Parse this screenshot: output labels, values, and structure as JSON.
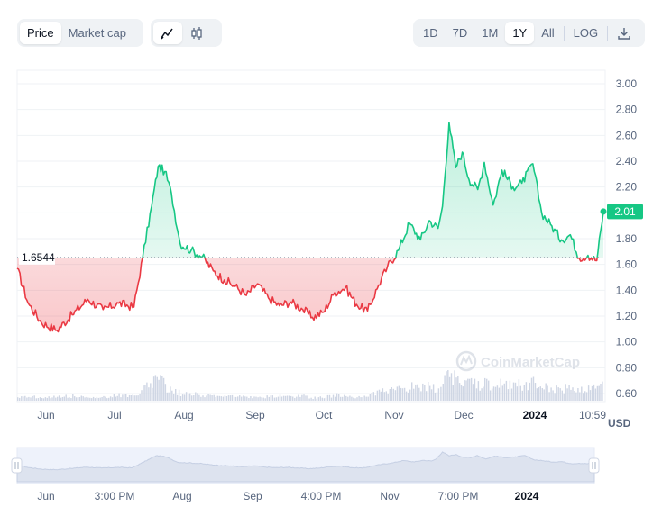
{
  "toolbar": {
    "metric_tabs": [
      "Price",
      "Market cap"
    ],
    "active_metric": "Price",
    "chart_type_icons": [
      "line-chart-icon",
      "candlestick-icon"
    ],
    "ranges": [
      "1D",
      "7D",
      "1M",
      "1Y",
      "All"
    ],
    "active_range": "1Y",
    "log_label": "LOG",
    "download_icon": "download-icon"
  },
  "colors": {
    "up": "#16c784",
    "down": "#ea3943",
    "accent": "#3861fb"
  },
  "watermark": "CoinMarketCap",
  "current_price_label": "2.01",
  "reference_price_label": "1.6544",
  "currency_label": "USD",
  "navigator": {
    "labels": [
      "Jun",
      "3:00 PM",
      "Aug",
      "Sep",
      "4:00 PM",
      "Nov",
      "7:00 PM",
      "2024"
    ]
  },
  "chart_data": {
    "type": "area",
    "baseline": 1.6544,
    "current": 2.01,
    "ylim": [
      0.5,
      3.1
    ],
    "y_ticks": [
      "3.00",
      "2.80",
      "2.60",
      "2.40",
      "2.20",
      "2.00",
      "1.80",
      "1.60",
      "1.40",
      "1.20",
      "1.00",
      "0.80",
      "0.60"
    ],
    "x_ticks": [
      "Jun",
      "Jul",
      "Aug",
      "Sep",
      "Oct",
      "Nov",
      "Dec",
      "2024",
      "10:59"
    ],
    "x_ticks_bold": [
      "2024"
    ],
    "ylabel": "USD",
    "series": [
      {
        "x": [
          "2023-05-21",
          "2023-05-26",
          "2023-06-01",
          "2023-06-08",
          "2023-06-15",
          "2023-06-22",
          "2023-06-29",
          "2023-07-06",
          "2023-07-13",
          "2023-07-17",
          "2023-07-21",
          "2023-07-24",
          "2023-07-27",
          "2023-07-30",
          "2023-08-03",
          "2023-08-08",
          "2023-08-13",
          "2023-08-18",
          "2023-08-23",
          "2023-08-28",
          "2023-09-02",
          "2023-09-07",
          "2023-09-12",
          "2023-09-17",
          "2023-09-22",
          "2023-09-27",
          "2023-10-02",
          "2023-10-07",
          "2023-10-12",
          "2023-10-17",
          "2023-10-22",
          "2023-10-27",
          "2023-11-01",
          "2023-11-05",
          "2023-11-10",
          "2023-11-15",
          "2023-11-20",
          "2023-11-24",
          "2023-11-28",
          "2023-11-30",
          "2023-12-03",
          "2023-12-06",
          "2023-12-09",
          "2023-12-12",
          "2023-12-16",
          "2023-12-19",
          "2023-12-23",
          "2023-12-27",
          "2024-01-01",
          "2024-01-05",
          "2024-01-10",
          "2024-01-14",
          "2024-01-18",
          "2024-01-23",
          "2024-01-27",
          "2024-01-31",
          "2024-02-04",
          "2024-02-08",
          "2024-02-11"
        ],
        "y": [
          1.57,
          1.3,
          1.15,
          1.09,
          1.21,
          1.33,
          1.25,
          1.3,
          1.27,
          1.66,
          2.05,
          2.36,
          2.32,
          2.15,
          1.76,
          1.71,
          1.66,
          1.55,
          1.48,
          1.43,
          1.36,
          1.45,
          1.34,
          1.28,
          1.31,
          1.26,
          1.19,
          1.23,
          1.38,
          1.42,
          1.29,
          1.24,
          1.44,
          1.58,
          1.71,
          1.92,
          1.79,
          1.94,
          1.88,
          2.05,
          2.7,
          2.35,
          2.47,
          2.26,
          2.18,
          2.39,
          2.06,
          2.33,
          2.2,
          2.23,
          2.38,
          2.0,
          1.91,
          1.79,
          1.83,
          1.65,
          1.67,
          1.63,
          2.01
        ]
      }
    ],
    "volume": [
      0.04,
      0.05,
      0.03,
      0.04,
      0.05,
      0.03,
      0.04,
      0.06,
      0.05,
      0.12,
      0.18,
      0.22,
      0.16,
      0.1,
      0.08,
      0.07,
      0.06,
      0.05,
      0.05,
      0.04,
      0.05,
      0.04,
      0.04,
      0.05,
      0.04,
      0.05,
      0.03,
      0.04,
      0.06,
      0.05,
      0.04,
      0.05,
      0.09,
      0.1,
      0.12,
      0.15,
      0.13,
      0.16,
      0.14,
      0.18,
      0.3,
      0.22,
      0.2,
      0.18,
      0.16,
      0.2,
      0.15,
      0.18,
      0.16,
      0.17,
      0.2,
      0.15,
      0.14,
      0.13,
      0.14,
      0.12,
      0.13,
      0.12,
      0.16
    ]
  }
}
